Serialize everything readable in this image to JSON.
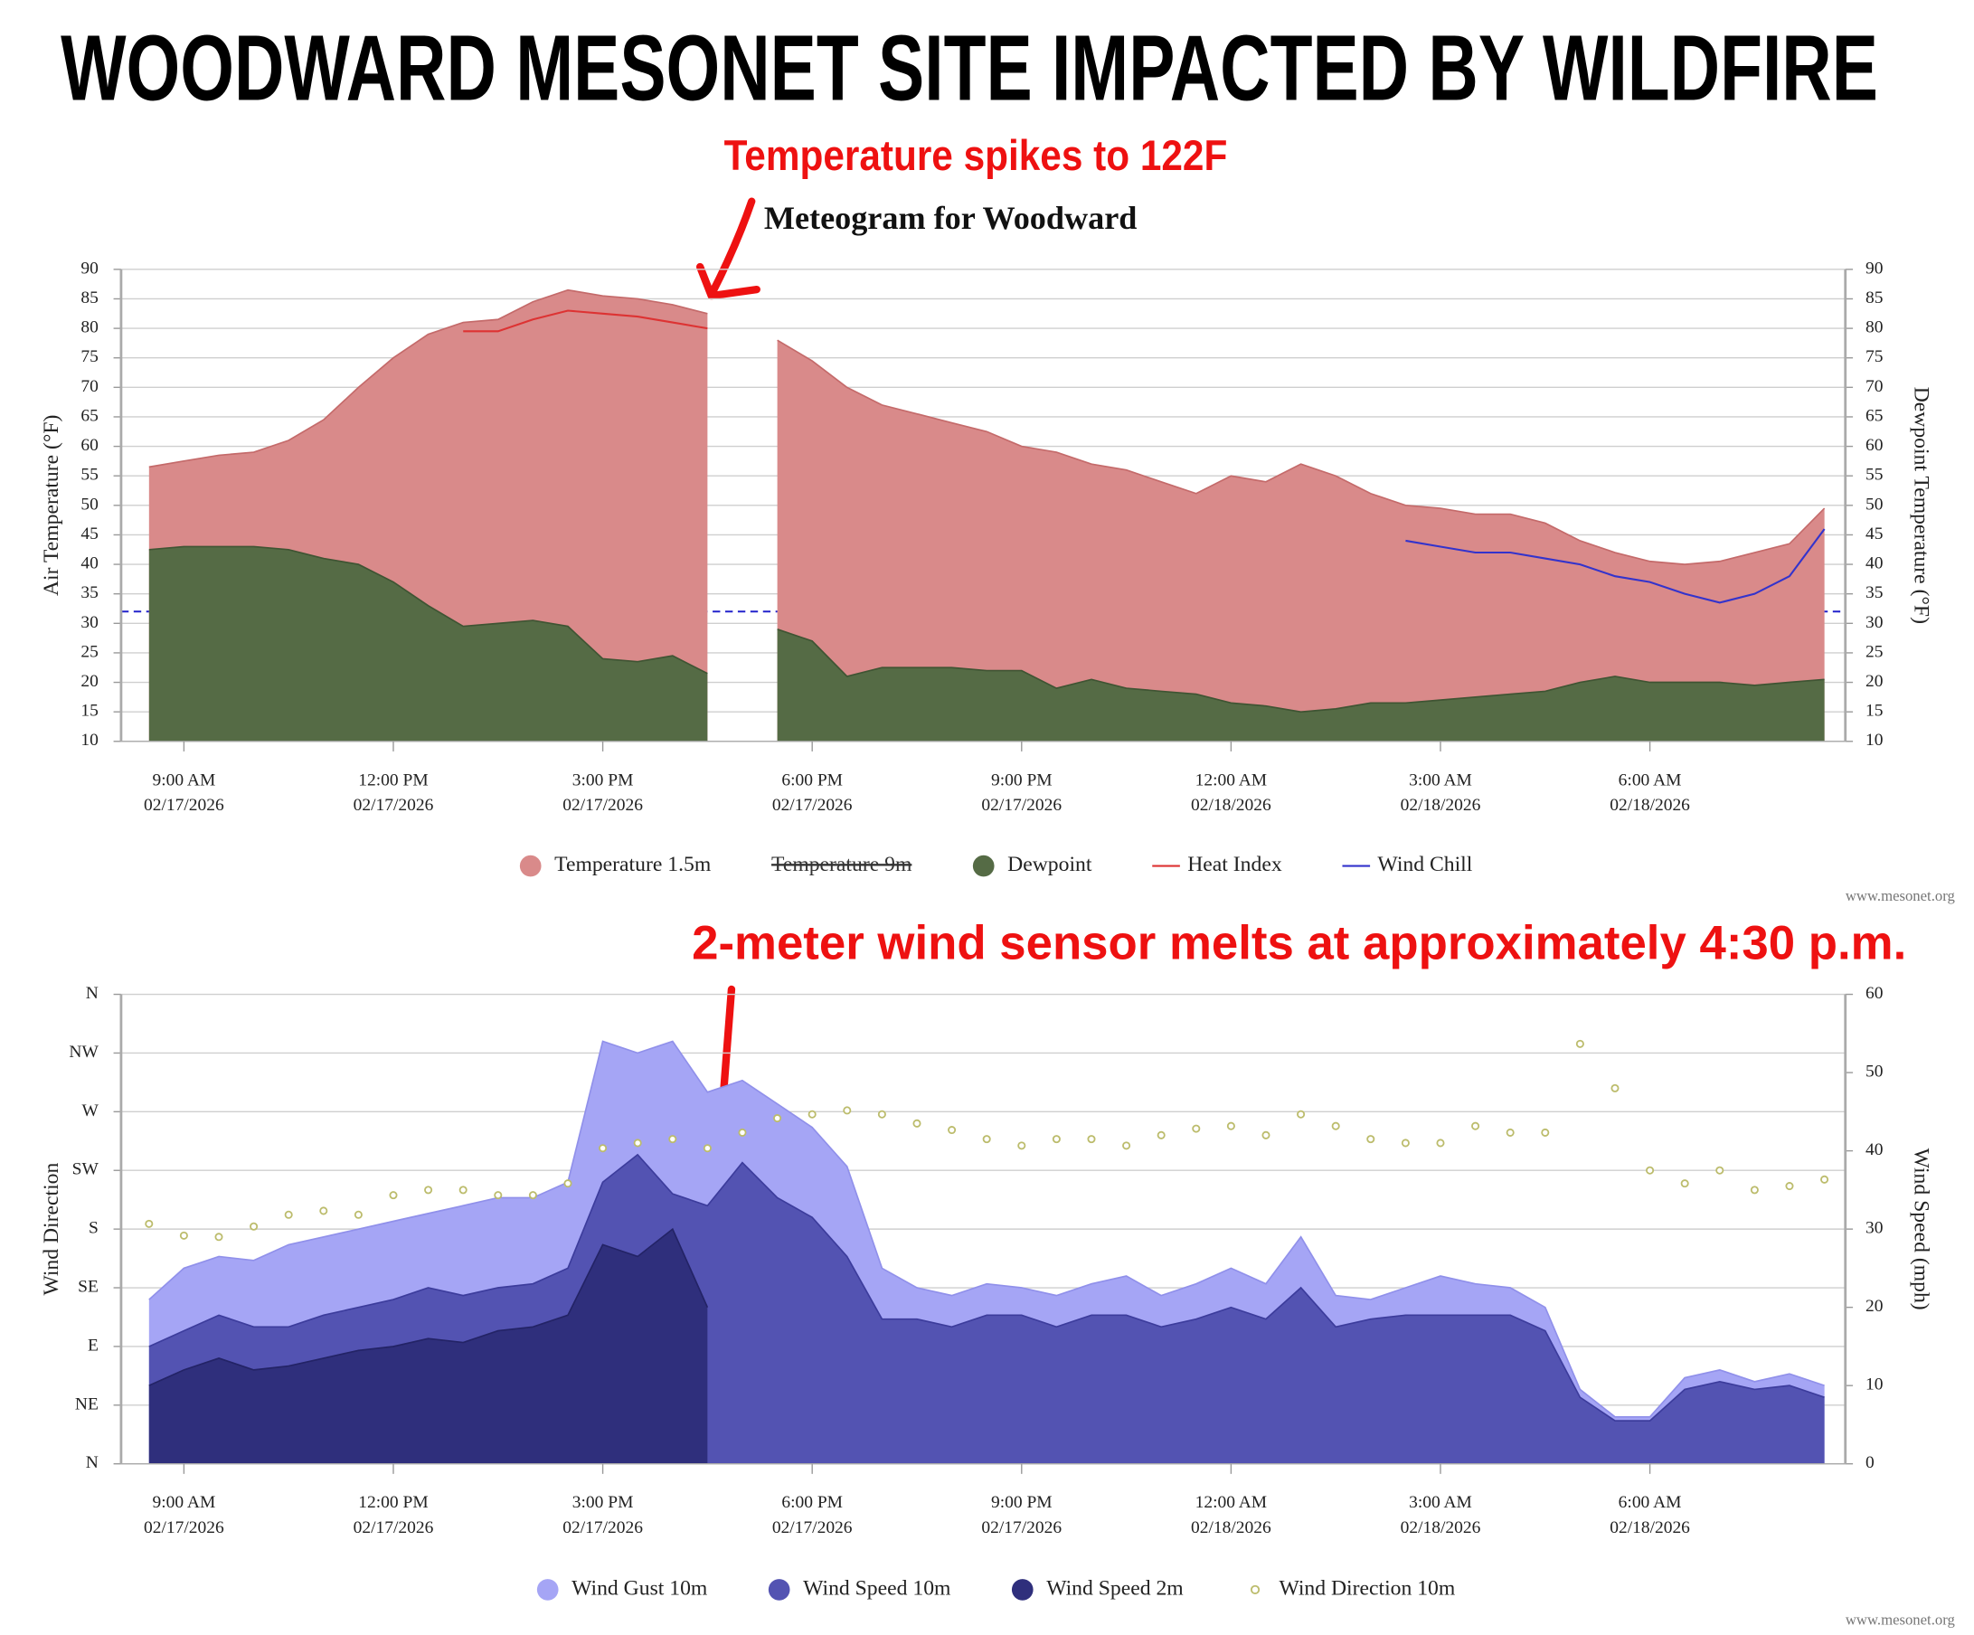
{
  "header": {
    "title": "WOODWARD MESONET SITE IMPACTED BY WILDFIRE"
  },
  "annotations": [
    "Temperature spikes to 122F",
    "2-meter wind sensor melts at approximately 4:30 p.m."
  ],
  "chart_data": [
    {
      "type": "area",
      "title": "Meteogram for Woodward",
      "ylabel": "Air Temperature (°F)",
      "y2label": "Dewpoint Temperature (°F)",
      "credit": "www.mesonet.org",
      "grid": true,
      "legend": "bottom",
      "xlim": [
        8.1,
        32.8
      ],
      "xticks": [
        {
          "value": 9,
          "label": [
            "9:00 AM",
            "02/17/2026"
          ]
        },
        {
          "value": 12,
          "label": [
            "12:00 PM",
            "02/17/2026"
          ]
        },
        {
          "value": 15,
          "label": [
            "3:00 PM",
            "02/17/2026"
          ]
        },
        {
          "value": 18,
          "label": [
            "6:00 PM",
            "02/17/2026"
          ]
        },
        {
          "value": 21,
          "label": [
            "9:00 PM",
            "02/17/2026"
          ]
        },
        {
          "value": 24,
          "label": [
            "12:00 AM",
            "02/18/2026"
          ]
        },
        {
          "value": 27,
          "label": [
            "3:00 AM",
            "02/18/2026"
          ]
        },
        {
          "value": 30,
          "label": [
            "6:00 AM",
            "02/18/2026"
          ]
        }
      ],
      "ylim": [
        10,
        90
      ],
      "yticks": [
        10,
        15,
        20,
        25,
        30,
        35,
        40,
        45,
        50,
        55,
        60,
        65,
        70,
        75,
        80,
        85,
        90
      ],
      "y2lim": [
        10,
        90
      ],
      "y2ticks": [
        10,
        15,
        20,
        25,
        30,
        35,
        40,
        45,
        50,
        55,
        60,
        65,
        70,
        75,
        80,
        85,
        90
      ],
      "reference_line": {
        "value": 32,
        "color": "#2222cc"
      },
      "x": [
        8.5,
        9,
        9.5,
        10,
        10.5,
        11,
        11.5,
        12,
        12.5,
        13,
        13.5,
        14,
        14.5,
        15,
        15.5,
        16,
        16.5,
        17,
        17.5,
        18,
        18.5,
        19,
        19.5,
        20,
        20.5,
        21,
        21.5,
        22,
        22.5,
        23,
        23.5,
        24,
        24.5,
        25,
        25.5,
        26,
        26.5,
        27,
        27.5,
        28,
        28.5,
        29,
        29.5,
        30,
        30.5,
        31,
        31.5,
        32,
        32.5
      ],
      "series": [
        {
          "name": "Temperature 1.5m",
          "type": "area",
          "color": "#d98a8a",
          "line_color": "#c46a6a",
          "values": [
            56.5,
            57.5,
            58.5,
            59,
            61,
            64.5,
            70,
            75,
            79,
            81,
            81.5,
            84.5,
            86.5,
            85.5,
            85,
            84,
            82.5,
            null,
            78,
            74.5,
            70,
            67,
            65.5,
            64,
            62.5,
            60,
            59,
            57,
            56,
            54,
            52,
            55,
            54,
            57,
            55,
            52,
            50,
            49.5,
            48.5,
            48.5,
            47,
            44,
            42,
            40.5,
            40,
            40.5,
            42,
            43.5,
            49.5
          ]
        },
        {
          "name": "Temperature 9m",
          "type": "area",
          "color": "#a05050",
          "visible": false
        },
        {
          "name": "Dewpoint",
          "type": "area",
          "color": "#556b45",
          "line_color": "#3f5433",
          "axis": "y2",
          "values": [
            42.5,
            43,
            43,
            43,
            42.5,
            41,
            40,
            37,
            33,
            29.5,
            30,
            30.5,
            29.5,
            24,
            23.5,
            24.5,
            21.5,
            null,
            29,
            27,
            21,
            22.5,
            22.5,
            22.5,
            22,
            22,
            19,
            20.5,
            19,
            18.5,
            18,
            16.5,
            16,
            15,
            15.5,
            16.5,
            16.5,
            17,
            17.5,
            18,
            18.5,
            20,
            21,
            20,
            20,
            20,
            19.5,
            20,
            20.5
          ]
        },
        {
          "name": "Heat Index",
          "type": "line",
          "color": "#dd3333",
          "values": [
            null,
            null,
            null,
            null,
            null,
            null,
            null,
            null,
            null,
            79.5,
            79.5,
            81.5,
            83,
            82.5,
            82,
            81,
            80,
            null,
            null,
            null,
            null,
            null,
            null,
            null,
            null,
            null,
            null,
            null,
            null,
            null,
            null,
            null,
            null,
            null,
            null,
            null,
            null,
            null,
            null,
            null,
            null,
            null,
            null,
            null,
            null,
            null,
            null,
            null,
            null
          ]
        },
        {
          "name": "Wind Chill",
          "type": "line",
          "color": "#3333cc",
          "values": [
            null,
            null,
            null,
            null,
            null,
            null,
            null,
            null,
            null,
            null,
            null,
            null,
            null,
            null,
            null,
            null,
            null,
            null,
            null,
            null,
            null,
            null,
            null,
            null,
            null,
            null,
            null,
            null,
            null,
            null,
            null,
            null,
            null,
            null,
            null,
            null,
            44,
            43,
            42,
            42,
            41,
            40,
            38,
            37,
            35,
            33.5,
            35,
            38,
            46
          ]
        }
      ]
    },
    {
      "type": "area",
      "ylabel": "Wind Direction",
      "y2label": "Wind Speed (mph)",
      "credit": "www.mesonet.org",
      "grid": true,
      "legend": "bottom",
      "xlim": [
        8.1,
        32.8
      ],
      "xticks": [
        {
          "value": 9,
          "label": [
            "9:00 AM",
            "02/17/2026"
          ]
        },
        {
          "value": 12,
          "label": [
            "12:00 PM",
            "02/17/2026"
          ]
        },
        {
          "value": 15,
          "label": [
            "3:00 PM",
            "02/17/2026"
          ]
        },
        {
          "value": 18,
          "label": [
            "6:00 PM",
            "02/17/2026"
          ]
        },
        {
          "value": 21,
          "label": [
            "9:00 PM",
            "02/17/2026"
          ]
        },
        {
          "value": 24,
          "label": [
            "12:00 AM",
            "02/18/2026"
          ]
        },
        {
          "value": 27,
          "label": [
            "3:00 AM",
            "02/18/2026"
          ]
        },
        {
          "value": 30,
          "label": [
            "6:00 AM",
            "02/18/2026"
          ]
        }
      ],
      "ylim": [
        0,
        360
      ],
      "yticks": [
        {
          "value": 0,
          "label": "N"
        },
        {
          "value": 45,
          "label": "NE"
        },
        {
          "value": 90,
          "label": "E"
        },
        {
          "value": 135,
          "label": "SE"
        },
        {
          "value": 180,
          "label": "S"
        },
        {
          "value": 225,
          "label": "SW"
        },
        {
          "value": 270,
          "label": "W"
        },
        {
          "value": 315,
          "label": "NW"
        },
        {
          "value": 360,
          "label": "N"
        }
      ],
      "y2lim": [
        0,
        60
      ],
      "y2ticks": [
        0,
        10,
        20,
        30,
        40,
        50,
        60
      ],
      "x": [
        8.5,
        9,
        9.5,
        10,
        10.5,
        11,
        11.5,
        12,
        12.5,
        13,
        13.5,
        14,
        14.5,
        15,
        15.5,
        16,
        16.5,
        17,
        17.5,
        18,
        18.5,
        19,
        19.5,
        20,
        20.5,
        21,
        21.5,
        22,
        22.5,
        23,
        23.5,
        24,
        24.5,
        25,
        25.5,
        26,
        26.5,
        27,
        27.5,
        28,
        28.5,
        29,
        29.5,
        30,
        30.5,
        31,
        31.5,
        32,
        32.5
      ],
      "series": [
        {
          "name": "Wind Gust 10m",
          "type": "area",
          "color": "#a5a5f5",
          "line_color": "#9090ea",
          "axis": "y2",
          "values": [
            21,
            25,
            26.5,
            26,
            28,
            29,
            30,
            31,
            32,
            33,
            34,
            34,
            36,
            54,
            52.5,
            54,
            47.5,
            49,
            46,
            43,
            38,
            25,
            22.5,
            21.5,
            23,
            22.5,
            21.5,
            23,
            24,
            21.5,
            23,
            25,
            23,
            29,
            21.5,
            21,
            22.5,
            24,
            23,
            22.5,
            20,
            9.5,
            6,
            6,
            11,
            12,
            10.5,
            11.5,
            10
          ]
        },
        {
          "name": "Wind Speed 10m",
          "type": "area",
          "color": "#5353b2",
          "line_color": "#3c3c9c",
          "axis": "y2",
          "values": [
            15,
            17,
            19,
            17.5,
            17.5,
            19,
            20,
            21,
            22.5,
            21.5,
            22.5,
            23,
            25,
            36,
            39.5,
            34.5,
            33,
            38.5,
            34,
            31.5,
            26.5,
            18.5,
            18.5,
            17.5,
            19,
            19,
            17.5,
            19,
            19,
            17.5,
            18.5,
            20,
            18.5,
            22.5,
            17.5,
            18.5,
            19,
            19,
            19,
            19,
            17,
            8.5,
            5.5,
            5.5,
            9.5,
            10.5,
            9.5,
            10,
            8.5
          ]
        },
        {
          "name": "Wind Speed 2m",
          "type": "area",
          "color": "#2f2f7c",
          "line_color": "#232366",
          "axis": "y2",
          "values": [
            10,
            12,
            13.5,
            12,
            12.5,
            13.5,
            14.5,
            15,
            16,
            15.5,
            17,
            17.5,
            19,
            28,
            26.5,
            30,
            20,
            null,
            null,
            null,
            null,
            null,
            null,
            null,
            null,
            null,
            null,
            null,
            null,
            null,
            null,
            null,
            null,
            null,
            null,
            null,
            null,
            null,
            null,
            null,
            null,
            null,
            null,
            null,
            null,
            null,
            null,
            null,
            null
          ]
        },
        {
          "name": "Wind Direction 10m",
          "type": "scatter",
          "color": "#bcbc6c",
          "values": [
            184,
            175,
            174,
            182,
            191,
            194,
            191,
            206,
            210,
            210,
            206,
            206,
            215,
            242,
            246,
            249,
            242,
            254,
            265,
            268,
            271,
            268,
            261,
            256,
            249,
            244,
            249,
            249,
            244,
            252,
            257,
            259,
            252,
            268,
            259,
            249,
            246,
            246,
            259,
            254,
            254,
            322,
            288,
            225,
            215,
            225,
            210,
            213,
            218
          ]
        }
      ]
    }
  ]
}
